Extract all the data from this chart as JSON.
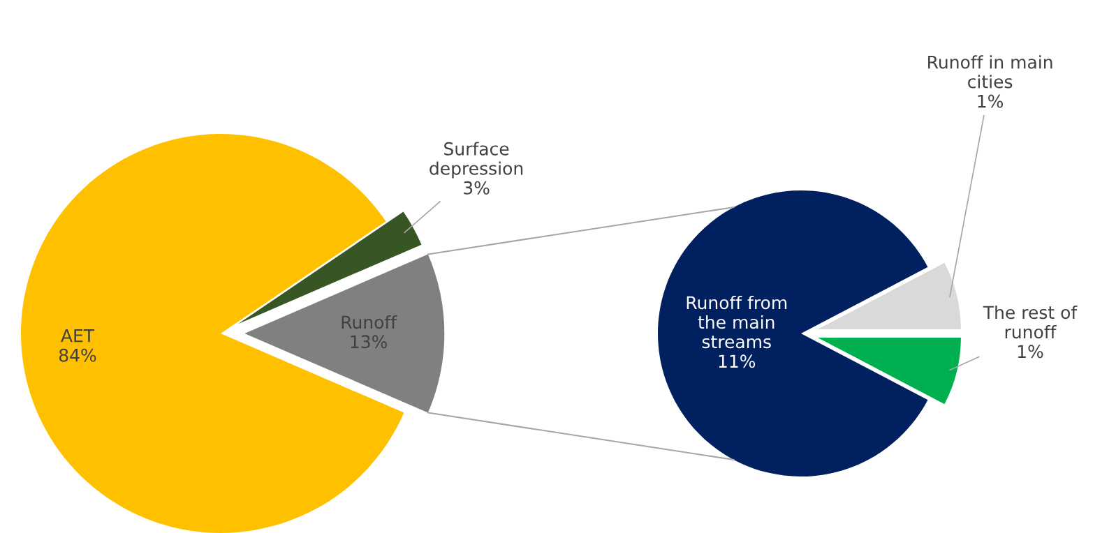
{
  "chart_data": [
    {
      "type": "pie",
      "categories": [
        "AET",
        "Surface depression",
        "Runoff"
      ],
      "values": [
        84,
        3,
        13
      ],
      "value_labels": [
        "84%",
        "3%",
        "13%"
      ],
      "colors": [
        "#ffc000",
        "#375623",
        "#808080"
      ]
    },
    {
      "type": "pie",
      "categories": [
        "Runoff from the main streams",
        "Runoff in main cities",
        "The rest of runoff"
      ],
      "values": [
        11,
        1,
        1
      ],
      "value_labels": [
        "11%",
        "1%",
        "1%"
      ],
      "colors": [
        "#002060",
        "#d9d9d9",
        "#00b050"
      ]
    }
  ]
}
